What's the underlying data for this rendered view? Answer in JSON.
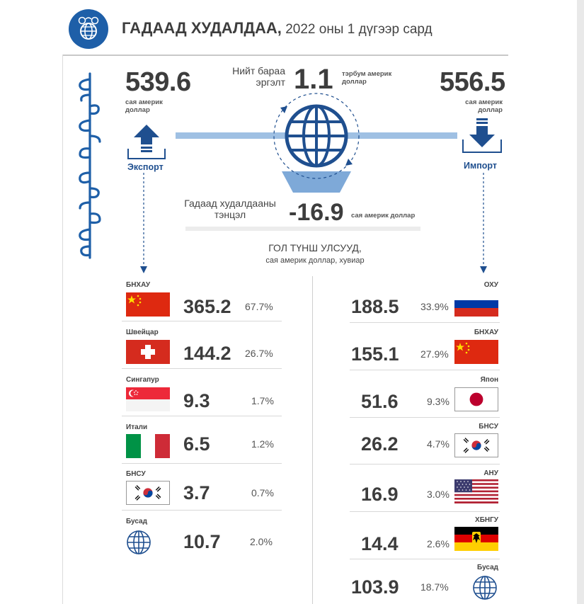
{
  "header": {
    "title_bold": "ГАДААД ХУДАЛДАА,",
    "title_rest": " 2022 оны 1 дүгээр сард",
    "logo_icon": "trade-globe-icon",
    "accent_color": "#1e5fa8"
  },
  "summary": {
    "export": {
      "value": "539.6",
      "unit": "сая америк доллар",
      "label": "Экспорт"
    },
    "import": {
      "value": "556.5",
      "unit": "сая америк доллар",
      "label": "Импорт"
    },
    "turnover": {
      "label": "Нийт бараа эргэлт",
      "value": "1.1",
      "unit": "тэрбум америк доллар"
    },
    "balance": {
      "label": "Гадаад худалдааны тэнцэл",
      "value": "-16.9",
      "unit": "сая америк доллар"
    }
  },
  "partners": {
    "title": "ГОЛ ТҮНШ УЛСУУД,",
    "subtitle": "сая америк доллар, хувиар",
    "export": [
      {
        "country": "БНХАУ",
        "value": "365.2",
        "pct": "67.7%",
        "flag": "china"
      },
      {
        "country": "Швейцар",
        "value": "144.2",
        "pct": "26.7%",
        "flag": "switzerland"
      },
      {
        "country": "Сингапур",
        "value": "9.3",
        "pct": "1.7%",
        "flag": "singapore"
      },
      {
        "country": "Итали",
        "value": "6.5",
        "pct": "1.2%",
        "flag": "italy"
      },
      {
        "country": "БНСУ",
        "value": "3.7",
        "pct": "0.7%",
        "flag": "korea"
      },
      {
        "country": "Бусад",
        "value": "10.7",
        "pct": "2.0%",
        "flag": "globe"
      }
    ],
    "import": [
      {
        "country": "ОХУ",
        "value": "188.5",
        "pct": "33.9%",
        "flag": "russia"
      },
      {
        "country": "БНХАУ",
        "value": "155.1",
        "pct": "27.9%",
        "flag": "china"
      },
      {
        "country": "Япон",
        "value": "51.6",
        "pct": "9.3%",
        "flag": "japan"
      },
      {
        "country": "БНСУ",
        "value": "26.2",
        "pct": "4.7%",
        "flag": "korea"
      },
      {
        "country": "АНУ",
        "value": "16.9",
        "pct": "3.0%",
        "flag": "usa"
      },
      {
        "country": "ХБНГУ",
        "value": "14.4",
        "pct": "2.6%",
        "flag": "germany"
      },
      {
        "country": "Бусад",
        "value": "103.9",
        "pct": "18.7%",
        "flag": "globe"
      }
    ]
  }
}
